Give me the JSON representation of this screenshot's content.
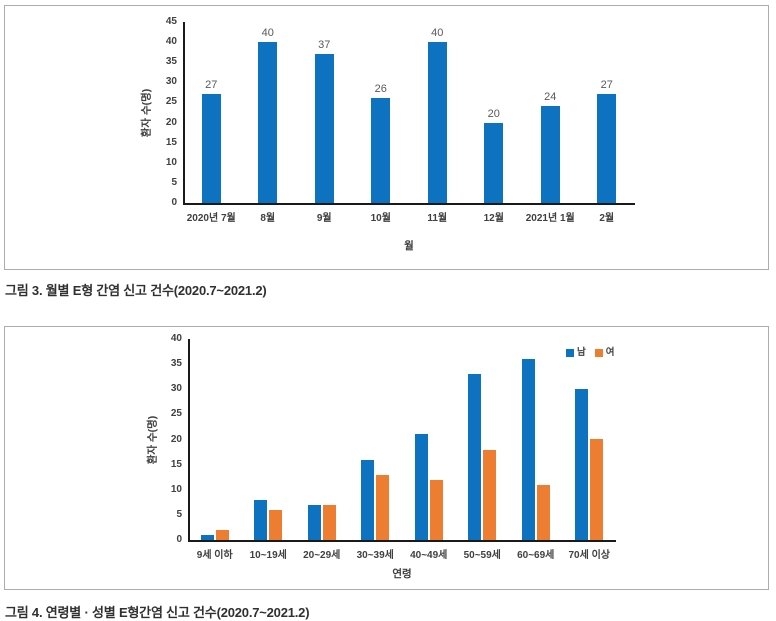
{
  "captions": {
    "figure3": "그림 3. 월별 E형 간염 신고 건수(2020.7~2021.2)",
    "figure4": "그림 4. 연령별 · 성별 E형간염 신고 건수(2020.7~2021.2)"
  },
  "colors": {
    "male_blue": "#0d72bf",
    "female_orange": "#ed7d31",
    "axis_line": "#1a1a1a",
    "tick_text": "#404040",
    "value_label_text": "#595959",
    "box_border": "#acacac"
  },
  "chart_data": [
    {
      "id": "chart-monthly",
      "type": "bar",
      "title": "",
      "categories": [
        "2020년 7월",
        "8월",
        "9월",
        "10월",
        "11월",
        "12월",
        "2021년 1월",
        "2월"
      ],
      "values": [
        27,
        40,
        37,
        26,
        40,
        20,
        24,
        27
      ],
      "value_labels_shown": true,
      "bar_color": "#0d72bf",
      "xlabel": "월",
      "ylabel": "환자 수(명)",
      "ylim": [
        0,
        45
      ],
      "ytick_step": 5,
      "grid": false,
      "legend": "none"
    },
    {
      "id": "chart-age-sex",
      "type": "bar",
      "title": "",
      "categories": [
        "9세 이하",
        "10~19세",
        "20~29세",
        "30~39세",
        "40~49세",
        "50~59세",
        "60~69세",
        "70세 이상"
      ],
      "series": [
        {
          "name": "남",
          "color": "#0d72bf",
          "values": [
            1,
            8,
            7,
            16,
            21,
            33,
            36,
            30
          ]
        },
        {
          "name": "여",
          "color": "#ed7d31",
          "values": [
            2,
            6,
            7,
            13,
            12,
            18,
            11,
            20
          ]
        }
      ],
      "value_labels_shown": false,
      "xlabel": "연령",
      "ylabel": "환자 수(명)",
      "ylim": [
        0,
        40
      ],
      "ytick_step": 5,
      "grid": false,
      "legend_position": "top-right"
    }
  ]
}
